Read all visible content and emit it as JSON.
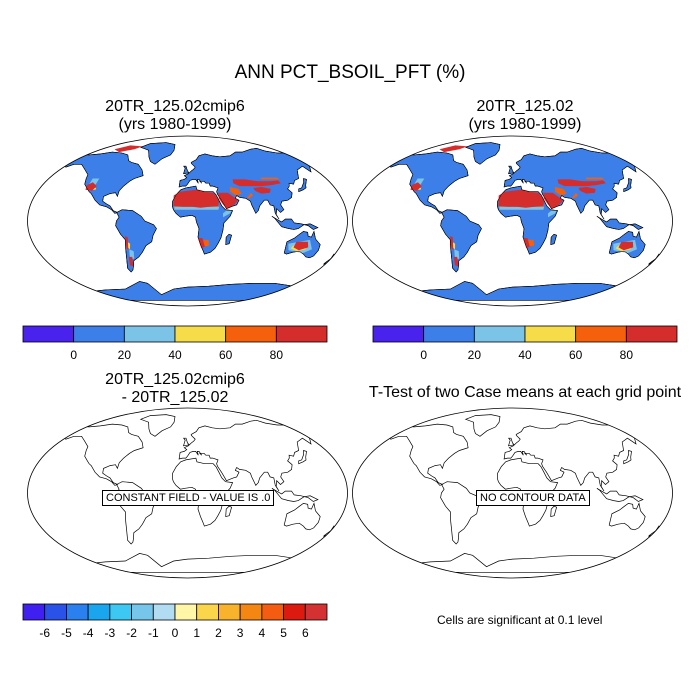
{
  "main_title": "ANN PCT_BSOIL_PFT (%)",
  "panels": {
    "top_left": {
      "title_line1": "20TR_125.02cmip6",
      "title_line2": "(yrs 1980-1999)"
    },
    "top_right": {
      "title_line1": "20TR_125.02",
      "title_line2": "(yrs 1980-1999)"
    },
    "bottom_left": {
      "title_line1": "20TR_125.02cmip6",
      "title_line2": "- 20TR_125.02",
      "note": "CONSTANT FIELD - VALUE IS .0"
    },
    "bottom_right": {
      "title_line1": "T-Test of two Case means at each grid point",
      "note": "NO CONTOUR DATA",
      "significance_text": "Cells are significant at 0.1 level"
    }
  },
  "colorbars": {
    "main": {
      "labels": [
        "0",
        "20",
        "40",
        "60",
        "80"
      ],
      "colors": [
        "#4a22ee",
        "#3d7fe8",
        "#7cc3e8",
        "#f5dc48",
        "#f5600c",
        "#d52c2c"
      ]
    },
    "diff": {
      "labels": [
        "-6",
        "-5",
        "-4",
        "-3",
        "-2",
        "-1",
        "0",
        "1",
        "2",
        "3",
        "4",
        "5",
        "6"
      ],
      "colors": [
        "#3f20f0",
        "#2b52e8",
        "#2b80ef",
        "#1aa6ef",
        "#3cc8f2",
        "#76c5ea",
        "#b1dcf2",
        "#fff6a8",
        "#fbd54a",
        "#f8b22b",
        "#f48712",
        "#f45c12",
        "#dd1a0f",
        "#d43232"
      ]
    }
  },
  "colors": {
    "ocean": "#ffffff",
    "land_base": "#3d7fe8",
    "desert": "#d52c2c",
    "orange": "#f5600c",
    "yellow": "#f5dc48",
    "light_blue": "#7cc3e8"
  }
}
